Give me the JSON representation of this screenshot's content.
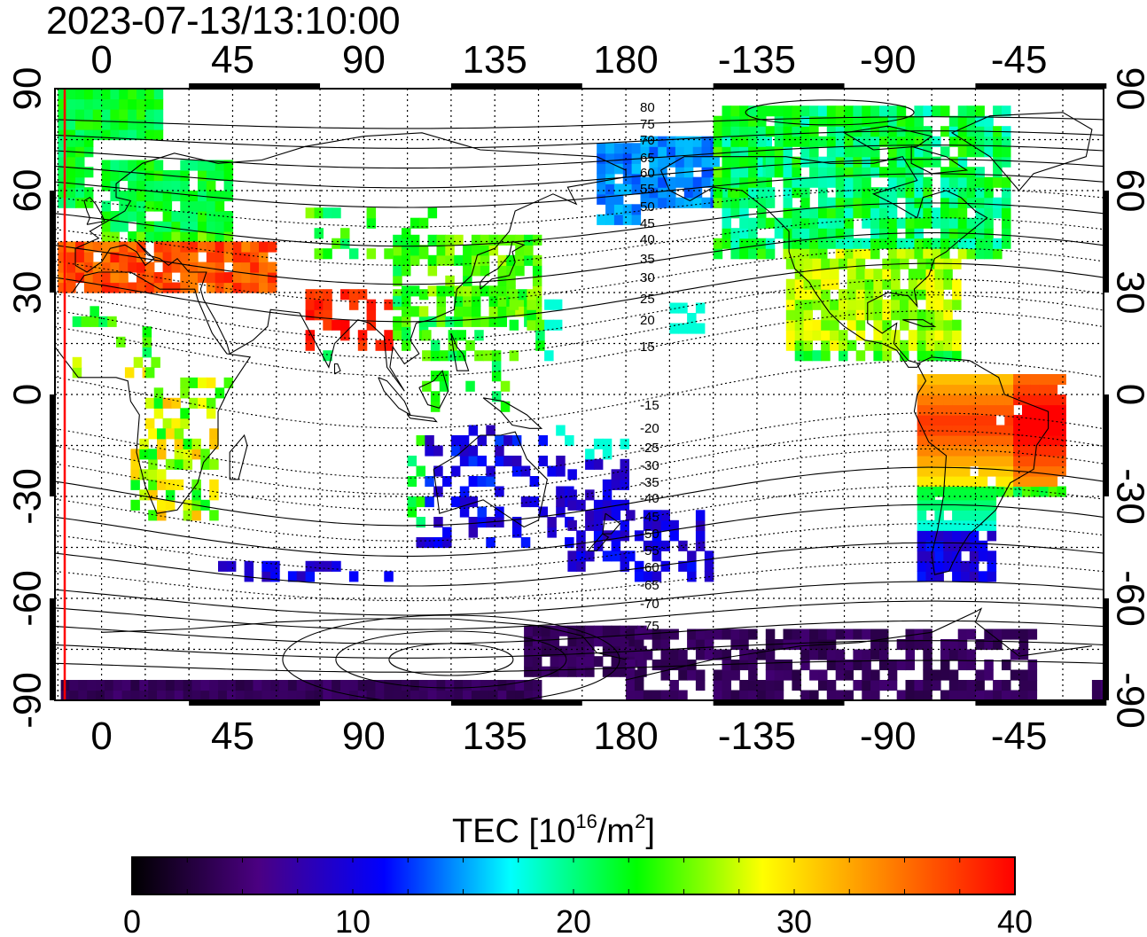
{
  "title": "2023-07-13/13:10:00",
  "map": {
    "x_ticks_top": [
      "0",
      "45",
      "90",
      "135",
      "180",
      "-135",
      "-90",
      "-45"
    ],
    "x_ticks_bottom": [
      "0",
      "45",
      "90",
      "135",
      "180",
      "-135",
      "-90",
      "-45"
    ],
    "y_ticks_left": [
      "90",
      "60",
      "30",
      "0",
      "-30",
      "-60",
      "-90"
    ],
    "y_ticks_right": [
      "90",
      "60",
      "30",
      "0",
      "-30",
      "-60",
      "-90"
    ],
    "contour_labels_north": [
      "80",
      "75",
      "70",
      "65",
      "60",
      "55",
      "50",
      "45",
      "40",
      "35",
      "30",
      "25",
      "20",
      "15"
    ],
    "contour_labels_south": [
      "-15",
      "-20",
      "-25",
      "-30",
      "-35",
      "-40",
      "-45",
      "-50",
      "-55",
      "-60",
      "-65",
      "-70",
      "-75"
    ],
    "colors": {
      "terminator": "#ff0000",
      "grid": "#000000",
      "coast": "#000000"
    }
  },
  "colorbar": {
    "title_main": "TEC  [10",
    "title_sup1": "16",
    "title_mid": "/m",
    "title_sup2": "2",
    "title_end": "]",
    "tick_labels": [
      "0",
      "10",
      "20",
      "30",
      "40"
    ],
    "min": 0,
    "max": 40,
    "colors": [
      "#000000",
      "#4b0082",
      "#0000ff",
      "#00ffff",
      "#00ff00",
      "#ffff00",
      "#ff8000",
      "#ff0000"
    ]
  }
}
